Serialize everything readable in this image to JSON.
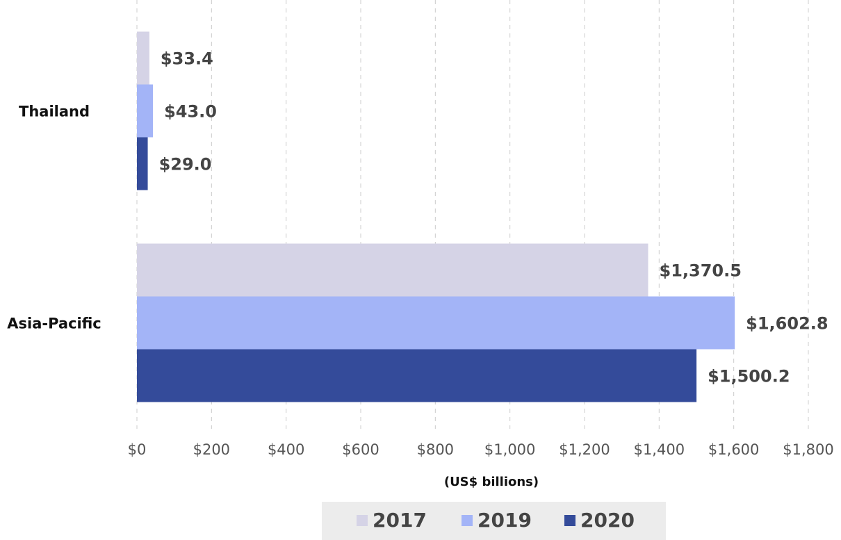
{
  "chart_data": {
    "type": "hbar",
    "categories": [
      "Thailand",
      "Asia-Pacific"
    ],
    "series": [
      {
        "name": "2017",
        "color": "#d5d3e6",
        "values": [
          33.4,
          1370.5
        ],
        "value_labels": [
          "$33.4",
          "$1,370.5"
        ]
      },
      {
        "name": "2019",
        "color": "#a3b4f7",
        "values": [
          43.0,
          1602.8
        ],
        "value_labels": [
          "$43.0",
          "$1,602.8"
        ]
      },
      {
        "name": "2020",
        "color": "#344b9a",
        "values": [
          29.0,
          1500.2
        ],
        "value_labels": [
          "$29.0",
          "$1,500.2"
        ]
      }
    ],
    "xlabel": "(US$ billions)",
    "xlim": [
      0,
      1800
    ],
    "xticks": [
      {
        "value": 0,
        "label": "$0"
      },
      {
        "value": 200,
        "label": "$200"
      },
      {
        "value": 400,
        "label": "$400"
      },
      {
        "value": 600,
        "label": "$600"
      },
      {
        "value": 800,
        "label": "$800"
      },
      {
        "value": 1000,
        "label": "$1,000"
      },
      {
        "value": 1200,
        "label": "$1,200"
      },
      {
        "value": 1400,
        "label": "$1,400"
      },
      {
        "value": 1600,
        "label": "$1,600"
      },
      {
        "value": 1800,
        "label": "$1,800"
      }
    ],
    "grid": true,
    "legend": "bottom"
  }
}
